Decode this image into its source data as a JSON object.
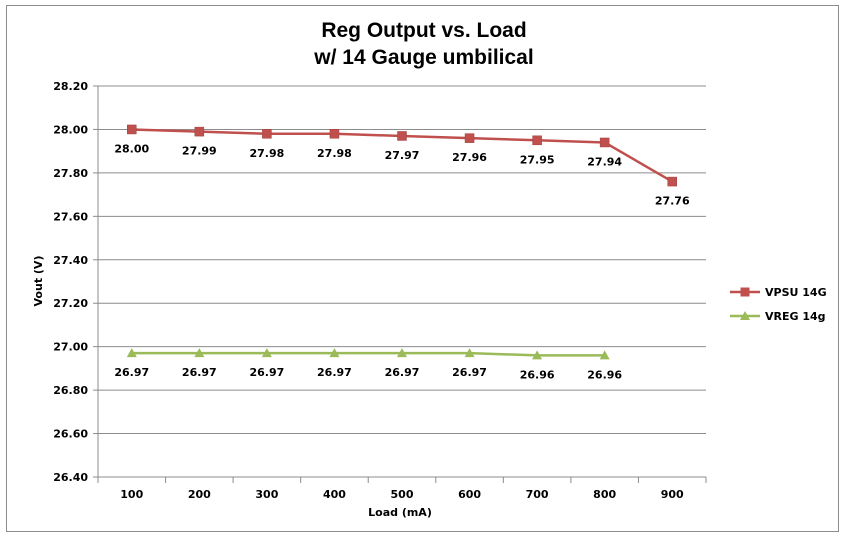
{
  "chart_data": {
    "type": "line",
    "title": [
      "Reg Output vs. Load",
      "w/ 14 Gauge umbilical"
    ],
    "xlabel": "Load (mA)",
    "ylabel": "Vout (V)",
    "categories": [
      "100",
      "200",
      "300",
      "400",
      "500",
      "600",
      "700",
      "800",
      "900"
    ],
    "ylim": [
      26.4,
      28.2
    ],
    "yticks": [
      "26.40",
      "26.60",
      "26.80",
      "27.00",
      "27.20",
      "27.40",
      "27.60",
      "27.80",
      "28.00",
      "28.20"
    ],
    "grid": true,
    "legend": "right",
    "series": [
      {
        "name": "VPSU 14G",
        "color": "#c0504d",
        "marker": "square",
        "values": [
          28.0,
          27.99,
          27.98,
          27.98,
          27.97,
          27.96,
          27.95,
          27.94,
          27.76
        ],
        "labels": [
          "28.00",
          "27.99",
          "27.98",
          "27.98",
          "27.97",
          "27.96",
          "27.95",
          "27.94",
          "27.76"
        ]
      },
      {
        "name": "VREG 14g",
        "color": "#9bbb59",
        "marker": "triangle",
        "values": [
          26.97,
          26.97,
          26.97,
          26.97,
          26.97,
          26.97,
          26.96,
          26.96,
          null
        ],
        "labels": [
          "26.97",
          "26.97",
          "26.97",
          "26.97",
          "26.97",
          "26.97",
          "26.96",
          "26.96",
          null
        ]
      }
    ]
  }
}
